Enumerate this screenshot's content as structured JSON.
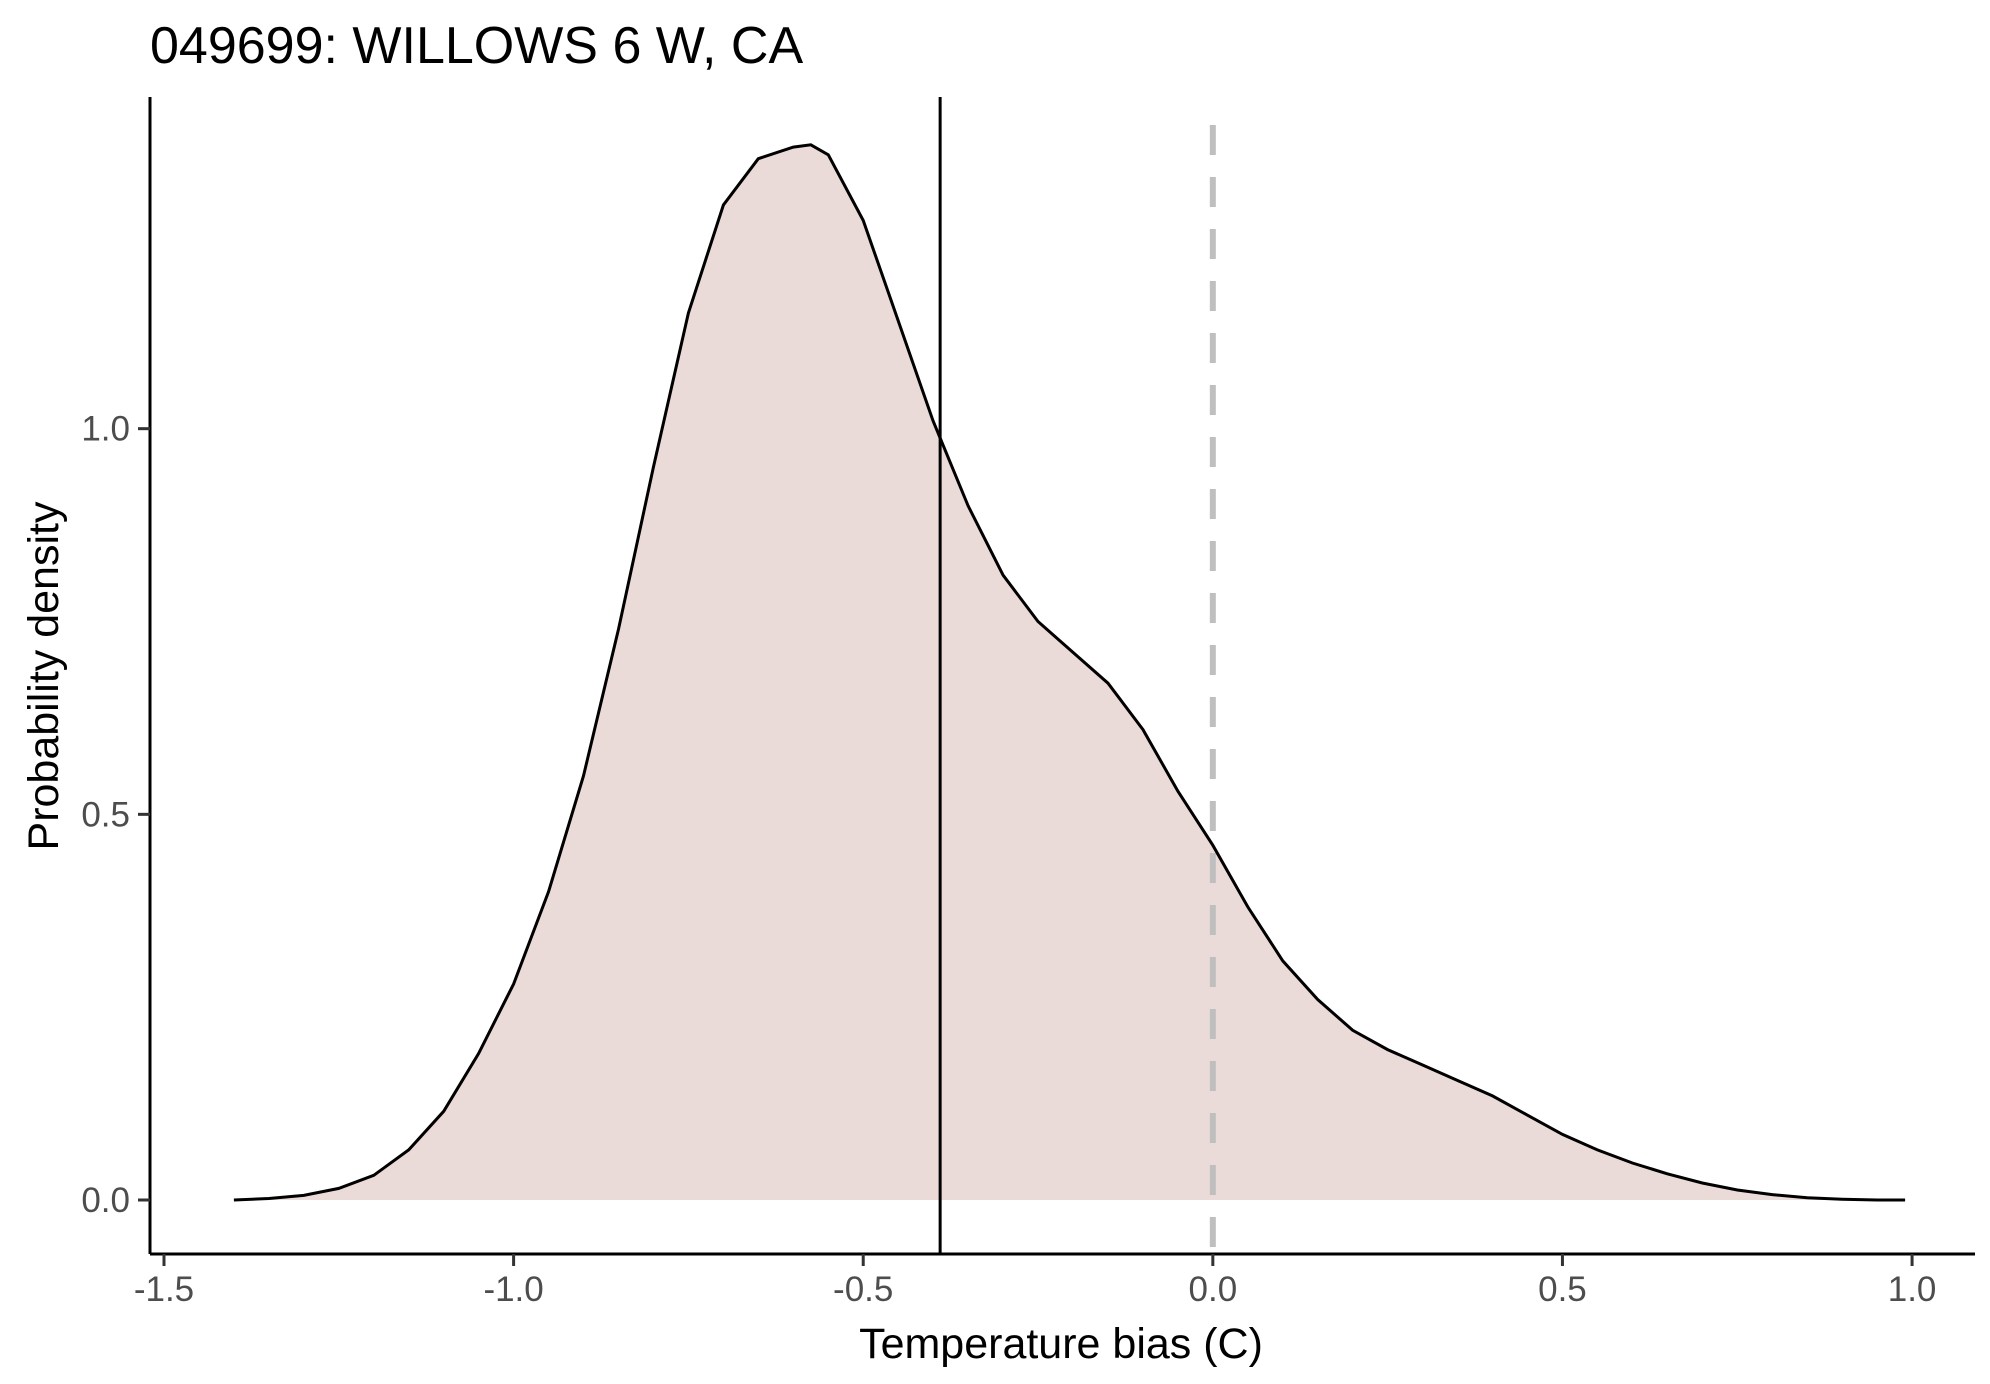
{
  "chart_data": {
    "type": "area",
    "title": "049699: WILLOWS 6 W, CA",
    "xlabel": "Temperature bias (C)",
    "ylabel": "Probability density",
    "xlim": [
      -1.52,
      1.09
    ],
    "ylim": [
      -0.07,
      1.43
    ],
    "x_ticks": [
      -1.5,
      -1.0,
      -0.5,
      0.0,
      0.5,
      1.0
    ],
    "x_tick_labels": [
      "-1.5",
      "-1.0",
      "-0.5",
      "0.0",
      "0.5",
      "1.0"
    ],
    "y_ticks": [
      0.0,
      0.5,
      1.0
    ],
    "y_tick_labels": [
      "0.0",
      "0.5",
      "1.0"
    ],
    "grid": false,
    "legend": "none",
    "fill_color": "#ebdbd8",
    "line_color": "#000000",
    "vline_mean": -0.39,
    "vline_zero": 0.0,
    "vline_zero_color": "#bfbfbf",
    "series": [
      {
        "x": [
          -1.4,
          -1.35,
          -1.3,
          -1.25,
          -1.2,
          -1.15,
          -1.1,
          -1.05,
          -1.0,
          -0.95,
          -0.9,
          -0.85,
          -0.8,
          -0.75,
          -0.7,
          -0.65,
          -0.6,
          -0.575,
          -0.55,
          -0.5,
          -0.45,
          -0.4,
          -0.35,
          -0.3,
          -0.25,
          -0.2,
          -0.15,
          -0.1,
          -0.05,
          0.0,
          0.05,
          0.1,
          0.15,
          0.2,
          0.25,
          0.3,
          0.35,
          0.4,
          0.45,
          0.5,
          0.55,
          0.6,
          0.65,
          0.7,
          0.75,
          0.8,
          0.85,
          0.9,
          0.95,
          0.99
        ],
        "y": [
          0.0,
          0.002,
          0.006,
          0.015,
          0.032,
          0.065,
          0.115,
          0.19,
          0.28,
          0.4,
          0.55,
          0.74,
          0.95,
          1.15,
          1.29,
          1.35,
          1.365,
          1.368,
          1.355,
          1.27,
          1.14,
          1.01,
          0.9,
          0.81,
          0.75,
          0.71,
          0.67,
          0.61,
          0.53,
          0.46,
          0.38,
          0.31,
          0.26,
          0.22,
          0.195,
          0.175,
          0.155,
          0.135,
          0.11,
          0.085,
          0.065,
          0.048,
          0.034,
          0.022,
          0.013,
          0.007,
          0.003,
          0.001,
          0.0,
          0.0
        ]
      }
    ]
  }
}
